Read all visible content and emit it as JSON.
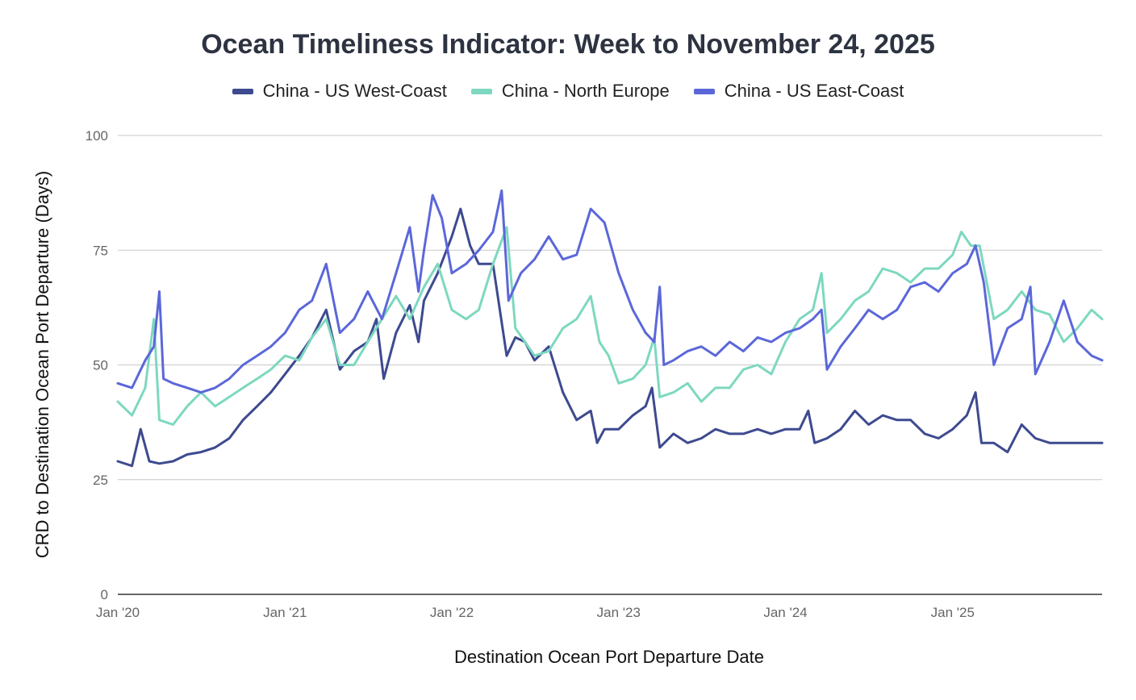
{
  "chart_data": {
    "type": "line",
    "title": "Ocean Timeliness Indicator: Week to November 24, 2025",
    "xlabel": "Destination Ocean Port Departure Date",
    "ylabel": "CRD to Destination Ocean Port Departure (Days)",
    "ylim": [
      0,
      100
    ],
    "yticks": [
      "0",
      "25",
      "50",
      "75",
      "100"
    ],
    "xticks": [
      "Jan '20",
      "Jan '21",
      "Jan '22",
      "Jan '23",
      "Jan '24",
      "Jan '25"
    ],
    "xrange": [
      "2020-01-01",
      "2025-11-24"
    ],
    "grid": true,
    "legend_position": "top-center",
    "series": [
      {
        "name": "China - US West-Coast",
        "color": "#3d4a8f",
        "points": [
          [
            "2020-01-01",
            29
          ],
          [
            "2020-02-01",
            28
          ],
          [
            "2020-02-20",
            36
          ],
          [
            "2020-03-10",
            29
          ],
          [
            "2020-04-01",
            28.5
          ],
          [
            "2020-05-01",
            29
          ],
          [
            "2020-06-01",
            30.5
          ],
          [
            "2020-07-01",
            31
          ],
          [
            "2020-08-01",
            32
          ],
          [
            "2020-09-01",
            34
          ],
          [
            "2020-10-01",
            38
          ],
          [
            "2020-11-01",
            41
          ],
          [
            "2020-12-01",
            44
          ],
          [
            "2021-01-01",
            48
          ],
          [
            "2021-02-01",
            52
          ],
          [
            "2021-03-01",
            56
          ],
          [
            "2021-04-01",
            62
          ],
          [
            "2021-05-01",
            49
          ],
          [
            "2021-06-01",
            53
          ],
          [
            "2021-07-01",
            55
          ],
          [
            "2021-07-20",
            60
          ],
          [
            "2021-08-05",
            47
          ],
          [
            "2021-09-01",
            57
          ],
          [
            "2021-10-01",
            63
          ],
          [
            "2021-10-20",
            55
          ],
          [
            "2021-11-01",
            64
          ],
          [
            "2021-12-01",
            70
          ],
          [
            "2022-01-01",
            78
          ],
          [
            "2022-01-20",
            84
          ],
          [
            "2022-02-10",
            76
          ],
          [
            "2022-03-01",
            72
          ],
          [
            "2022-04-01",
            72
          ],
          [
            "2022-05-01",
            52
          ],
          [
            "2022-05-20",
            56
          ],
          [
            "2022-06-10",
            55
          ],
          [
            "2022-07-01",
            51
          ],
          [
            "2022-08-01",
            54
          ],
          [
            "2022-09-01",
            44
          ],
          [
            "2022-10-01",
            38
          ],
          [
            "2022-11-01",
            40
          ],
          [
            "2022-11-15",
            33
          ],
          [
            "2022-12-01",
            36
          ],
          [
            "2023-01-01",
            36
          ],
          [
            "2023-02-01",
            39
          ],
          [
            "2023-03-01",
            41
          ],
          [
            "2023-03-15",
            45
          ],
          [
            "2023-04-01",
            32
          ],
          [
            "2023-05-01",
            35
          ],
          [
            "2023-06-01",
            33
          ],
          [
            "2023-07-01",
            34
          ],
          [
            "2023-08-01",
            36
          ],
          [
            "2023-09-01",
            35
          ],
          [
            "2023-10-01",
            35
          ],
          [
            "2023-11-01",
            36
          ],
          [
            "2023-12-01",
            35
          ],
          [
            "2024-01-01",
            36
          ],
          [
            "2024-02-01",
            36
          ],
          [
            "2024-02-20",
            40
          ],
          [
            "2024-03-05",
            33
          ],
          [
            "2024-04-01",
            34
          ],
          [
            "2024-05-01",
            36
          ],
          [
            "2024-06-01",
            40
          ],
          [
            "2024-07-01",
            37
          ],
          [
            "2024-08-01",
            39
          ],
          [
            "2024-09-01",
            38
          ],
          [
            "2024-10-01",
            38
          ],
          [
            "2024-11-01",
            35
          ],
          [
            "2024-12-01",
            34
          ],
          [
            "2025-01-01",
            36
          ],
          [
            "2025-02-01",
            39
          ],
          [
            "2025-02-20",
            44
          ],
          [
            "2025-03-05",
            33
          ],
          [
            "2025-04-01",
            33
          ],
          [
            "2025-05-01",
            31
          ],
          [
            "2025-06-01",
            37
          ],
          [
            "2025-07-01",
            34
          ],
          [
            "2025-08-01",
            33
          ],
          [
            "2025-09-01",
            33
          ],
          [
            "2025-10-01",
            33
          ],
          [
            "2025-11-01",
            33
          ],
          [
            "2025-11-24",
            33
          ]
        ]
      },
      {
        "name": "China - North Europe",
        "color": "#7dd8bf",
        "points": [
          [
            "2020-01-01",
            42
          ],
          [
            "2020-02-01",
            39
          ],
          [
            "2020-03-01",
            45
          ],
          [
            "2020-03-20",
            60
          ],
          [
            "2020-04-01",
            38
          ],
          [
            "2020-05-01",
            37
          ],
          [
            "2020-06-01",
            41
          ],
          [
            "2020-07-01",
            44
          ],
          [
            "2020-08-01",
            41
          ],
          [
            "2020-09-01",
            43
          ],
          [
            "2020-10-01",
            45
          ],
          [
            "2020-11-01",
            47
          ],
          [
            "2020-12-01",
            49
          ],
          [
            "2021-01-01",
            52
          ],
          [
            "2021-02-01",
            51
          ],
          [
            "2021-03-01",
            56
          ],
          [
            "2021-04-01",
            60
          ],
          [
            "2021-05-01",
            50
          ],
          [
            "2021-06-01",
            50
          ],
          [
            "2021-07-01",
            55
          ],
          [
            "2021-08-01",
            60
          ],
          [
            "2021-09-01",
            65
          ],
          [
            "2021-10-01",
            60
          ],
          [
            "2021-11-01",
            67
          ],
          [
            "2021-12-01",
            72
          ],
          [
            "2022-01-01",
            62
          ],
          [
            "2022-02-01",
            60
          ],
          [
            "2022-03-01",
            62
          ],
          [
            "2022-04-01",
            72
          ],
          [
            "2022-05-01",
            80
          ],
          [
            "2022-05-20",
            58
          ],
          [
            "2022-06-10",
            55
          ],
          [
            "2022-07-01",
            52
          ],
          [
            "2022-08-01",
            53
          ],
          [
            "2022-09-01",
            58
          ],
          [
            "2022-10-01",
            60
          ],
          [
            "2022-11-01",
            65
          ],
          [
            "2022-11-20",
            55
          ],
          [
            "2022-12-10",
            52
          ],
          [
            "2023-01-01",
            46
          ],
          [
            "2023-02-01",
            47
          ],
          [
            "2023-03-01",
            50
          ],
          [
            "2023-03-20",
            56
          ],
          [
            "2023-04-01",
            43
          ],
          [
            "2023-05-01",
            44
          ],
          [
            "2023-06-01",
            46
          ],
          [
            "2023-07-01",
            42
          ],
          [
            "2023-08-01",
            45
          ],
          [
            "2023-09-01",
            45
          ],
          [
            "2023-10-01",
            49
          ],
          [
            "2023-11-01",
            50
          ],
          [
            "2023-12-01",
            48
          ],
          [
            "2024-01-01",
            55
          ],
          [
            "2024-02-01",
            60
          ],
          [
            "2024-03-01",
            62
          ],
          [
            "2024-03-20",
            70
          ],
          [
            "2024-04-01",
            57
          ],
          [
            "2024-05-01",
            60
          ],
          [
            "2024-06-01",
            64
          ],
          [
            "2024-07-01",
            66
          ],
          [
            "2024-08-01",
            71
          ],
          [
            "2024-09-01",
            70
          ],
          [
            "2024-10-01",
            68
          ],
          [
            "2024-11-01",
            71
          ],
          [
            "2024-12-01",
            71
          ],
          [
            "2025-01-01",
            74
          ],
          [
            "2025-01-20",
            79
          ],
          [
            "2025-02-10",
            76
          ],
          [
            "2025-03-01",
            76
          ],
          [
            "2025-04-01",
            60
          ],
          [
            "2025-05-01",
            62
          ],
          [
            "2025-06-01",
            66
          ],
          [
            "2025-07-01",
            62
          ],
          [
            "2025-08-01",
            61
          ],
          [
            "2025-09-01",
            55
          ],
          [
            "2025-10-01",
            58
          ],
          [
            "2025-11-01",
            62
          ],
          [
            "2025-11-24",
            60
          ]
        ]
      },
      {
        "name": "China - US East-Coast",
        "color": "#5b67d9",
        "points": [
          [
            "2020-01-01",
            46
          ],
          [
            "2020-02-01",
            45
          ],
          [
            "2020-03-01",
            51
          ],
          [
            "2020-03-20",
            54
          ],
          [
            "2020-04-01",
            66
          ],
          [
            "2020-04-10",
            47
          ],
          [
            "2020-05-01",
            46
          ],
          [
            "2020-06-01",
            45
          ],
          [
            "2020-07-01",
            44
          ],
          [
            "2020-08-01",
            45
          ],
          [
            "2020-09-01",
            47
          ],
          [
            "2020-10-01",
            50
          ],
          [
            "2020-11-01",
            52
          ],
          [
            "2020-12-01",
            54
          ],
          [
            "2021-01-01",
            57
          ],
          [
            "2021-02-01",
            62
          ],
          [
            "2021-03-01",
            64
          ],
          [
            "2021-04-01",
            72
          ],
          [
            "2021-05-01",
            57
          ],
          [
            "2021-06-01",
            60
          ],
          [
            "2021-07-01",
            66
          ],
          [
            "2021-08-01",
            60
          ],
          [
            "2021-09-01",
            70
          ],
          [
            "2021-10-01",
            80
          ],
          [
            "2021-10-20",
            66
          ],
          [
            "2021-11-01",
            75
          ],
          [
            "2021-11-20",
            87
          ],
          [
            "2021-12-10",
            82
          ],
          [
            "2022-01-01",
            70
          ],
          [
            "2022-02-01",
            72
          ],
          [
            "2022-03-01",
            75
          ],
          [
            "2022-04-01",
            79
          ],
          [
            "2022-04-20",
            88
          ],
          [
            "2022-05-05",
            64
          ],
          [
            "2022-06-01",
            70
          ],
          [
            "2022-07-01",
            73
          ],
          [
            "2022-08-01",
            78
          ],
          [
            "2022-09-01",
            73
          ],
          [
            "2022-10-01",
            74
          ],
          [
            "2022-11-01",
            84
          ],
          [
            "2022-12-01",
            81
          ],
          [
            "2023-01-01",
            70
          ],
          [
            "2023-02-01",
            62
          ],
          [
            "2023-03-01",
            57
          ],
          [
            "2023-03-20",
            55
          ],
          [
            "2023-04-01",
            67
          ],
          [
            "2023-04-10",
            50
          ],
          [
            "2023-05-01",
            51
          ],
          [
            "2023-06-01",
            53
          ],
          [
            "2023-07-01",
            54
          ],
          [
            "2023-08-01",
            52
          ],
          [
            "2023-09-01",
            55
          ],
          [
            "2023-10-01",
            53
          ],
          [
            "2023-11-01",
            56
          ],
          [
            "2023-12-01",
            55
          ],
          [
            "2024-01-01",
            57
          ],
          [
            "2024-02-01",
            58
          ],
          [
            "2024-03-01",
            60
          ],
          [
            "2024-03-20",
            62
          ],
          [
            "2024-04-01",
            49
          ],
          [
            "2024-05-01",
            54
          ],
          [
            "2024-06-01",
            58
          ],
          [
            "2024-07-01",
            62
          ],
          [
            "2024-08-01",
            60
          ],
          [
            "2024-09-01",
            62
          ],
          [
            "2024-10-01",
            67
          ],
          [
            "2024-11-01",
            68
          ],
          [
            "2024-12-01",
            66
          ],
          [
            "2025-01-01",
            70
          ],
          [
            "2025-02-01",
            72
          ],
          [
            "2025-02-20",
            76
          ],
          [
            "2025-03-10",
            68
          ],
          [
            "2025-04-01",
            50
          ],
          [
            "2025-05-01",
            58
          ],
          [
            "2025-06-01",
            60
          ],
          [
            "2025-06-20",
            67
          ],
          [
            "2025-07-01",
            48
          ],
          [
            "2025-08-01",
            55
          ],
          [
            "2025-09-01",
            64
          ],
          [
            "2025-10-01",
            55
          ],
          [
            "2025-11-01",
            52
          ],
          [
            "2025-11-24",
            51
          ]
        ]
      }
    ]
  }
}
